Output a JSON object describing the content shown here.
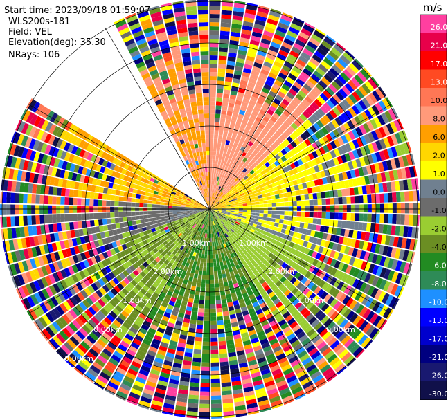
{
  "info": {
    "start_time": "Start time: 2023/09/18 01:59:07",
    "instrument": "WLS200s-181",
    "field": "Field: VEL",
    "elevation": "Elevation(deg): 35.30",
    "nrays": "NRays: 106"
  },
  "colorbar": {
    "unit": "m/s",
    "labels": [
      "26.0",
      "21.0",
      "17.0",
      "13.0",
      "10.0",
      "8.0",
      "6.0",
      "2.0",
      "1.0",
      "0.0",
      "-1.0",
      "-2.0",
      "-4.0",
      "-6.0",
      "-8.0",
      "-10.0",
      "-13.0",
      "-17.0",
      "-21.0",
      "-26.0",
      "-30.0"
    ],
    "colors": [
      "#ff3fa0",
      "#e8004a",
      "#ff0000",
      "#ff4a22",
      "#ff7755",
      "#ff9a7a",
      "#ff9f00",
      "#ffd700",
      "#ffff00",
      "#708090",
      "#6c6c6c",
      "#9acd32",
      "#6b8e23",
      "#228b22",
      "#2e8b57",
      "#1e90ff",
      "#0000ff",
      "#0000cd",
      "#000080",
      "#191970",
      "#10104a"
    ]
  },
  "chart_data": {
    "type": "ppi",
    "field": "VEL",
    "unit": "m/s",
    "elevation_deg": 35.3,
    "nrays": 106,
    "range_rings_km": [
      1.0,
      2.0
    ],
    "ring_labels": [
      "1.00km",
      "1.00km",
      "2.00km",
      "2.00km",
      "1.00km",
      "1.00km",
      "0.00km",
      "0.00km",
      "0.00km",
      "0.00km"
    ],
    "missing_sector_deg": [
      302,
      334
    ],
    "velocity_regions": [
      {
        "from_deg": 0,
        "to_deg": 48,
        "near_value": 6.0,
        "far_value": 8.0
      },
      {
        "from_deg": 48,
        "to_deg": 85,
        "near_value": 2.0,
        "far_value": 0.0
      },
      {
        "from_deg": 85,
        "to_deg": 112,
        "near_value": 0.0,
        "far_value": 0.0
      },
      {
        "from_deg": 112,
        "to_deg": 150,
        "near_value": -2.0,
        "far_value": -4.0
      },
      {
        "from_deg": 150,
        "to_deg": 210,
        "near_value": -6.0,
        "far_value": -6.0
      },
      {
        "from_deg": 210,
        "to_deg": 250,
        "near_value": -4.0,
        "far_value": -4.0
      },
      {
        "from_deg": 250,
        "to_deg": 275,
        "near_value": -1.0,
        "far_value": -2.0
      },
      {
        "from_deg": 275,
        "to_deg": 302,
        "near_value": 2.0,
        "far_value": 2.0
      },
      {
        "from_deg": 334,
        "to_deg": 360,
        "near_value": 6.0,
        "far_value": 6.0
      }
    ]
  }
}
